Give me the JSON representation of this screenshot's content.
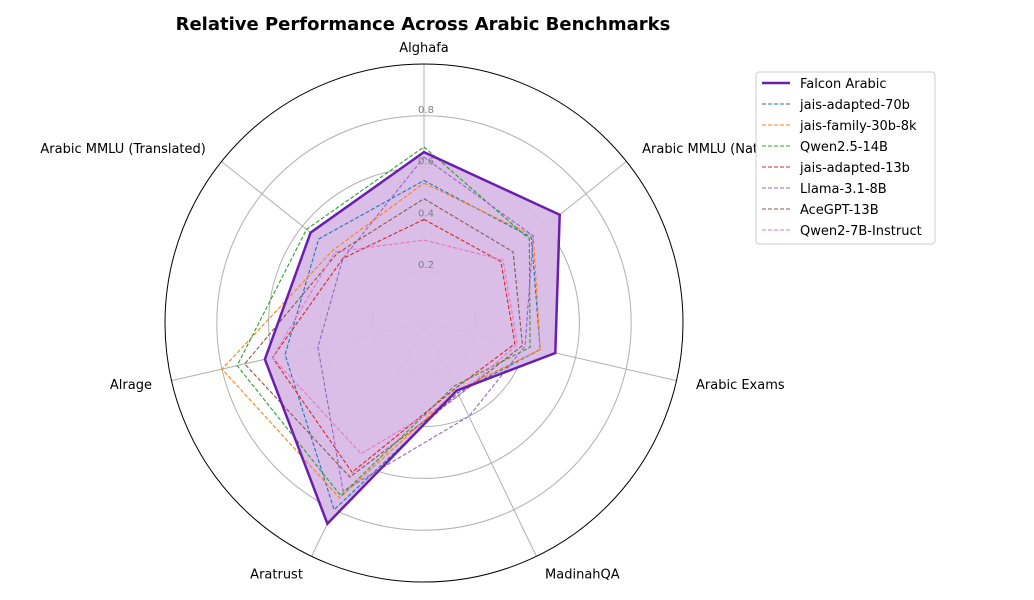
{
  "chart_data": {
    "type": "radar",
    "title": "Relative Performance Across Arabic Benchmarks",
    "axes": [
      "Alghafa",
      "Arabic MMLU (Native)",
      "Arabic Exams",
      "MadinahQA",
      "Aratrust",
      "Alrage",
      "Arabic MMLU (Translated)"
    ],
    "rlim": [
      0,
      1.0
    ],
    "rticks": [
      0.2,
      0.4,
      0.6,
      0.8
    ],
    "rtick_labels": [
      "0.2",
      "0.4",
      "0.6",
      "0.8"
    ],
    "grid": true,
    "legend_position": "top-right-outside",
    "series": [
      {
        "name": "Falcon Arabic",
        "color": "#6a1eb0",
        "style": "solid",
        "fill": true,
        "fill_color": "#d8bbe6",
        "values": [
          0.66,
          0.67,
          0.52,
          0.29,
          0.86,
          0.63,
          0.56
        ]
      },
      {
        "name": "jais-adapted-70b",
        "color": "#1f77b4",
        "style": "dashed",
        "values": [
          0.55,
          0.53,
          0.46,
          0.3,
          0.8,
          0.55,
          0.52
        ]
      },
      {
        "name": "jais-family-30b-8k",
        "color": "#ff7f0e",
        "style": "dashed",
        "values": [
          0.54,
          0.54,
          0.46,
          0.29,
          0.75,
          0.8,
          0.45
        ]
      },
      {
        "name": "Qwen2.5-14B",
        "color": "#2ca02c",
        "style": "dashed",
        "values": [
          0.68,
          0.52,
          0.42,
          0.27,
          0.74,
          0.74,
          0.58
        ]
      },
      {
        "name": "jais-adapted-13b",
        "color": "#d62728",
        "style": "dashed",
        "values": [
          0.4,
          0.38,
          0.36,
          0.28,
          0.64,
          0.6,
          0.4
        ]
      },
      {
        "name": "Llama-3.1-8B",
        "color": "#9467bd",
        "style": "dashed",
        "values": [
          0.64,
          0.54,
          0.4,
          0.4,
          0.72,
          0.42,
          0.4
        ]
      },
      {
        "name": "AceGPT-13B",
        "color": "#8c564b",
        "style": "dashed",
        "values": [
          0.48,
          0.44,
          0.39,
          0.31,
          0.66,
          0.71,
          0.43
        ]
      },
      {
        "name": "Qwen2-7B-Instruct",
        "color": "#e377c2",
        "style": "dashed",
        "values": [
          0.32,
          0.39,
          0.37,
          0.31,
          0.56,
          0.6,
          0.44
        ]
      }
    ]
  }
}
